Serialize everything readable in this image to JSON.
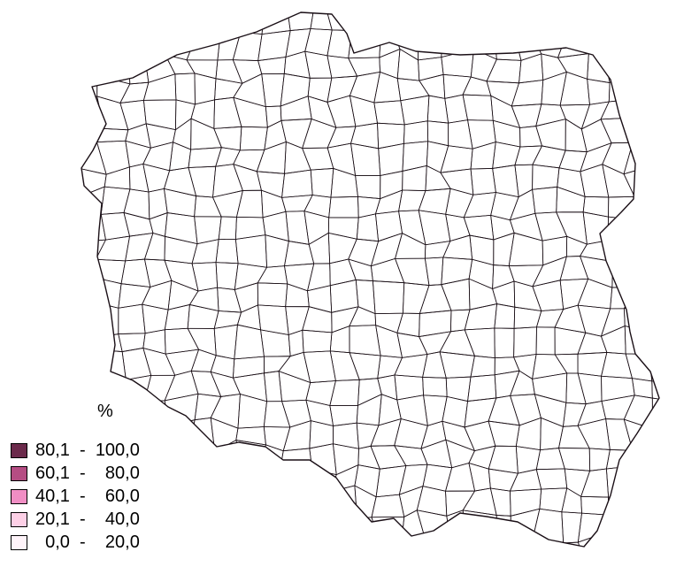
{
  "legend": {
    "unit": "%",
    "classes": [
      {
        "label": "80,1  -  100,0",
        "color": "#6b2a4b"
      },
      {
        "label": "60,1  -    80,0",
        "color": "#b54d83"
      },
      {
        "label": "40,1  -    60,0",
        "color": "#f08ec4"
      },
      {
        "label": "20,1  -    40,0",
        "color": "#fdd0e6"
      },
      {
        "label": "  0,0  -    20,0",
        "color": "#fff4fa"
      }
    ]
  }
}
